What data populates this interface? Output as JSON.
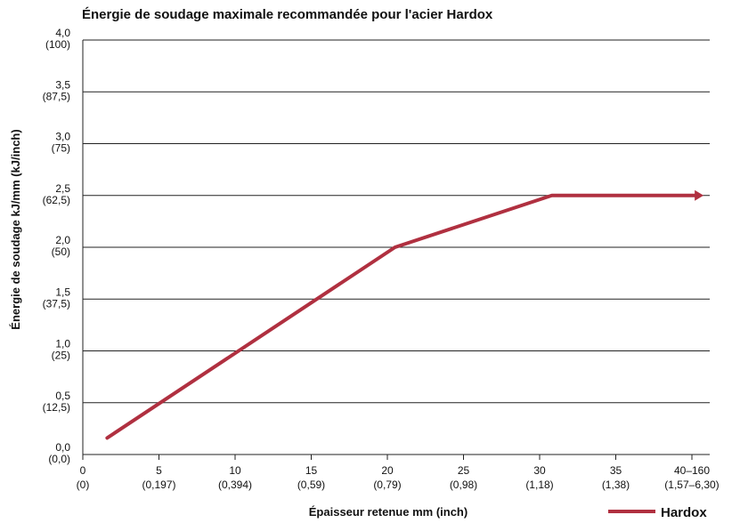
{
  "chart_data": {
    "type": "line",
    "title": "Énergie de soudage maximale recommandée pour l'acier Hardox",
    "xlabel": "Épaisseur retenue mm (inch)",
    "ylabel": "Énergie de soudage kJ/mm (kJ/inch)",
    "x_ticks": [
      {
        "value": 0,
        "label": "0",
        "sub": "(0)"
      },
      {
        "value": 5,
        "label": "5",
        "sub": "(0,197)"
      },
      {
        "value": 10,
        "label": "10",
        "sub": "(0,394)"
      },
      {
        "value": 15,
        "label": "15",
        "sub": "(0,59)"
      },
      {
        "value": 20,
        "label": "20",
        "sub": "(0,79)"
      },
      {
        "value": 25,
        "label": "25",
        "sub": "(0,98)"
      },
      {
        "value": 30,
        "label": "30",
        "sub": "(1,18)"
      },
      {
        "value": 35,
        "label": "35",
        "sub": "(1,38)"
      },
      {
        "value": 40,
        "label": "40–160",
        "sub": "(1,57–6,30)"
      }
    ],
    "y_ticks": [
      {
        "value": 0.0,
        "label": "0,0",
        "sub": "(0,0)"
      },
      {
        "value": 0.5,
        "label": "0,5",
        "sub": "(12,5)"
      },
      {
        "value": 1.0,
        "label": "1,0",
        "sub": "(25)"
      },
      {
        "value": 1.5,
        "label": "1,5",
        "sub": "(37,5)"
      },
      {
        "value": 2.0,
        "label": "2,0",
        "sub": "(50)"
      },
      {
        "value": 2.5,
        "label": "2,5",
        "sub": "(62,5)"
      },
      {
        "value": 3.0,
        "label": "3,0",
        "sub": "(75)"
      },
      {
        "value": 3.5,
        "label": "3,5",
        "sub": "(87,5)"
      },
      {
        "value": 4.0,
        "label": "4,0",
        "sub": "(100)"
      }
    ],
    "xlim": [
      0,
      41
    ],
    "ylim": [
      0,
      4
    ],
    "grid": "horizontal",
    "legend_position": "bottom-right",
    "series": [
      {
        "name": "Hardox",
        "color": "#b03040",
        "x": [
          1.6,
          20.5,
          30.8,
          40.3
        ],
        "y": [
          0.16,
          2.0,
          2.5,
          2.5
        ],
        "end_arrow": true
      }
    ]
  }
}
